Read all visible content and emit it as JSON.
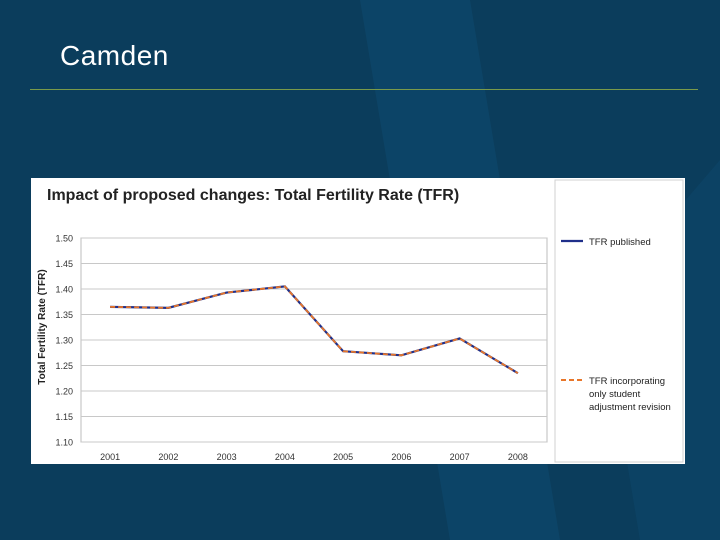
{
  "slide": {
    "title": "Camden"
  },
  "chart_data": {
    "type": "line",
    "title": "Impact of proposed changes: Total Fertility Rate (TFR)",
    "xlabel": "",
    "ylabel": "Total Fertility Rate (TFR)",
    "ylim": [
      1.1,
      1.5
    ],
    "yticks": [
      "1.50",
      "1.45",
      "1.40",
      "1.35",
      "1.30",
      "1.25",
      "1.20",
      "1.15",
      "1.10"
    ],
    "categories": [
      "2001",
      "2002",
      "2003",
      "2004",
      "2005",
      "2006",
      "2007",
      "2008"
    ],
    "grid": true,
    "legend_position": "right",
    "series": [
      {
        "name": "TFR published",
        "style": "solid",
        "color": "#1f2f8a",
        "values": [
          1.365,
          1.363,
          1.393,
          1.405,
          1.278,
          1.27,
          1.303,
          1.235
        ]
      },
      {
        "name_lines": [
          "TFR incorporating",
          "only student",
          "adjustment revision"
        ],
        "style": "dashed",
        "color": "#e8762a",
        "values": [
          1.365,
          1.363,
          1.393,
          1.405,
          1.278,
          1.27,
          1.303,
          1.235
        ]
      }
    ]
  }
}
